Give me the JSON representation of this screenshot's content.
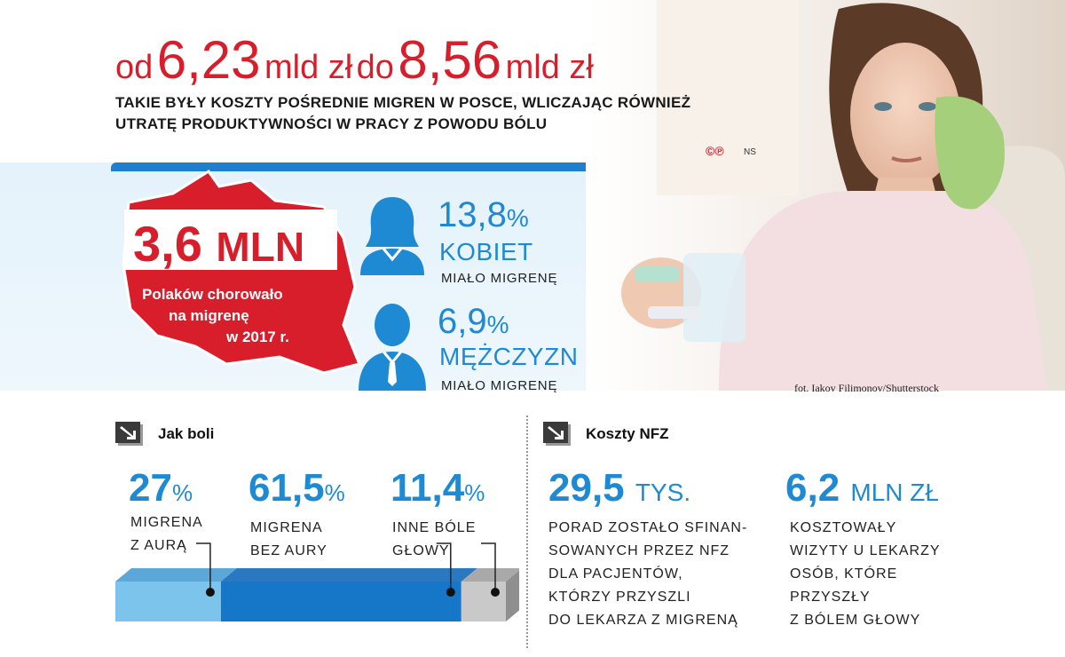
{
  "header": {
    "from_word": "od",
    "from_value": "6,23",
    "from_unit": "mld zł",
    "to_word": "do",
    "to_value": "8,56",
    "to_unit": "mld zł",
    "subtitle_line1": "Takie były koszty pośrednie migren w Posce, wliczając również",
    "subtitle_line2": "utratę produktywności w pracy z powodu bólu",
    "copyright": "©℗",
    "author": "NS"
  },
  "photo": {
    "credit": "fot. Iakov Filimonov/Shutterstock"
  },
  "poland": {
    "value": "3,6",
    "unit": "MLN",
    "line1": "Polaków chorowało",
    "line2": "na migrenę",
    "line3": "w 2017 r."
  },
  "women": {
    "value": "13,8",
    "percent_sign": "%",
    "group": "KOBIET",
    "had": "MIAŁO MIGRENĘ"
  },
  "men": {
    "value": "6,9",
    "percent_sign": "%",
    "group": "MĘŻCZYZN",
    "had": "MIAŁO MIGRENĘ"
  },
  "pain": {
    "title": "Jak boli",
    "items": [
      {
        "value": "27",
        "sign": "%",
        "line1": "MIGRENA",
        "line2": "Z AURĄ",
        "share": 27.0,
        "color": "#7cc4ec"
      },
      {
        "value": "61,5",
        "sign": "%",
        "line1": "MIGRENA",
        "line2": "BEZ AURY",
        "share": 61.5,
        "color": "#1677c8"
      },
      {
        "value": "11,4",
        "sign": "%",
        "line1": "INNE BÓLE",
        "line2": "GŁOWY",
        "share": 11.4,
        "color": "#c9c9c9"
      }
    ]
  },
  "nfz": {
    "title": "Koszty NFZ",
    "advice_value": "29,5",
    "advice_unit": "TYS.",
    "advice_lines": [
      "PORAD ZOSTAŁO SFINAN-",
      "SOWANYCH PRZEZ NFZ",
      "DLA PACJENTÓW,",
      "KTÓRZY PRZYSZLI",
      "DO LEKARZA Z MIGRENĄ"
    ],
    "cost_value": "6,2",
    "cost_unit": "MLN ZŁ",
    "cost_lines": [
      "KOSZTOWAŁY",
      "WIZYTY U LEKARZY",
      "OSÓB, KTÓRE",
      "PRZYSZŁY",
      "Z BÓLEM GŁOWY"
    ]
  },
  "colors": {
    "red": "#d81e2a",
    "blue": "#1f8ad4",
    "light_blue_band": "#e4f2fb"
  }
}
